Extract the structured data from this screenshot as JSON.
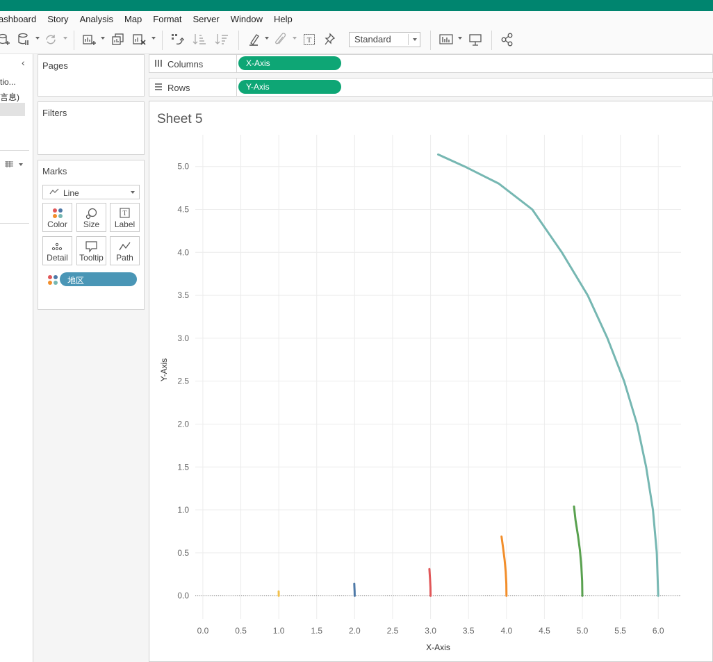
{
  "menu": [
    "ashboard",
    "Story",
    "Analysis",
    "Map",
    "Format",
    "Server",
    "Window",
    "Help"
  ],
  "toolbar": {
    "fit_select": "Standard"
  },
  "datapane": {
    "line1": "tio...",
    "line2": "言息)"
  },
  "cards": {
    "pages": "Pages",
    "filters": "Filters",
    "marks": "Marks"
  },
  "marks": {
    "type": "Line",
    "buttons": {
      "color": "Color",
      "size": "Size",
      "label": "Label",
      "detail": "Detail",
      "tooltip": "Tooltip",
      "path": "Path"
    },
    "color_field": "地区"
  },
  "shelves": {
    "columns_label": "Columns",
    "columns_pill": "X-Axis",
    "rows_label": "Rows",
    "rows_pill": "Y-Axis"
  },
  "sheet_title": "Sheet 5",
  "chart_data": {
    "type": "line",
    "xlabel": "X-Axis",
    "ylabel": "Y-Axis",
    "xlim": [
      -0.1,
      6.3
    ],
    "ylim": [
      -0.27,
      5.37
    ],
    "x_ticks": [
      "0.0",
      "0.5",
      "1.0",
      "1.5",
      "2.0",
      "2.5",
      "3.0",
      "3.5",
      "4.0",
      "4.5",
      "5.0",
      "5.5",
      "6.0"
    ],
    "y_ticks": [
      "0.0",
      "0.5",
      "1.0",
      "1.5",
      "2.0",
      "2.5",
      "3.0",
      "3.5",
      "4.0",
      "4.5",
      "5.0"
    ],
    "series": [
      {
        "color": "#f2c14e",
        "points": [
          [
            1.0,
            0.0
          ],
          [
            1.0,
            0.025
          ],
          [
            0.999,
            0.05
          ]
        ]
      },
      {
        "color": "#4e79a7",
        "points": [
          [
            2.0,
            0.0
          ],
          [
            1.999,
            0.05
          ],
          [
            1.997,
            0.1
          ],
          [
            1.995,
            0.14
          ]
        ]
      },
      {
        "color": "#e15759",
        "points": [
          [
            3.0,
            0.0
          ],
          [
            2.998,
            0.1
          ],
          [
            2.993,
            0.2
          ],
          [
            2.985,
            0.31
          ]
        ]
      },
      {
        "color": "#f28e2b",
        "points": [
          [
            4.0,
            0.0
          ],
          [
            3.998,
            0.14
          ],
          [
            3.99,
            0.28
          ],
          [
            3.975,
            0.42
          ],
          [
            3.955,
            0.56
          ],
          [
            3.935,
            0.69
          ]
        ]
      },
      {
        "color": "#59a14f",
        "points": [
          [
            5.0,
            0.0
          ],
          [
            4.997,
            0.17
          ],
          [
            4.986,
            0.35
          ],
          [
            4.968,
            0.53
          ],
          [
            4.942,
            0.7
          ],
          [
            4.91,
            0.88
          ],
          [
            4.89,
            1.04
          ]
        ]
      },
      {
        "color": "#76b7b2",
        "points": [
          [
            6.0,
            0.0
          ],
          [
            5.98,
            0.5
          ],
          [
            5.93,
            1.0
          ],
          [
            5.84,
            1.5
          ],
          [
            5.72,
            2.0
          ],
          [
            5.55,
            2.5
          ],
          [
            5.33,
            3.0
          ],
          [
            5.07,
            3.5
          ],
          [
            4.73,
            4.0
          ],
          [
            4.34,
            4.5
          ],
          [
            3.9,
            4.8
          ],
          [
            3.45,
            5.0
          ],
          [
            3.1,
            5.14
          ]
        ]
      }
    ]
  }
}
